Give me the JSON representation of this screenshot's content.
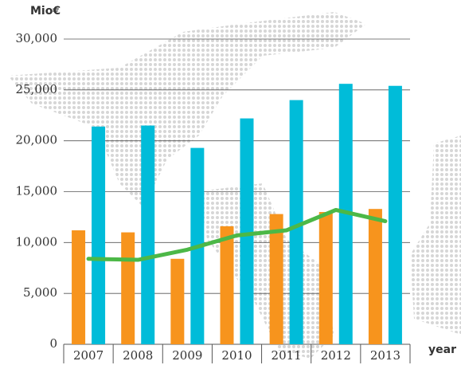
{
  "chart_data": {
    "type": "bar_line",
    "y_axis_label": "Mio€",
    "x_axis_label": "year",
    "categories": [
      "2007",
      "2008",
      "2009",
      "2010",
      "2011",
      "2012",
      "2013"
    ],
    "series": [
      {
        "color": "#f7941d",
        "kind": "bar",
        "values": [
          11200,
          11000,
          8400,
          11600,
          12800,
          13000,
          13300
        ]
      },
      {
        "color": "#00bcd9",
        "kind": "bar",
        "values": [
          21400,
          21500,
          19300,
          22200,
          24000,
          25600,
          25400
        ]
      },
      {
        "color": "#4cb847",
        "kind": "line",
        "values": [
          8400,
          8300,
          9300,
          10700,
          11200,
          13200,
          12100
        ]
      }
    ],
    "ylim": [
      0,
      30000
    ],
    "yticks": [
      0,
      {
        "value": 5000,
        "label": "5,000"
      },
      {
        "value": 10000,
        "label": "10,000"
      },
      {
        "value": 15000,
        "label": "15,000"
      },
      {
        "value": 20000,
        "label": "20,000"
      },
      {
        "value": 25000,
        "label": "25,000"
      },
      {
        "value": 30000,
        "label": "30,000"
      }
    ],
    "grid": true
  }
}
